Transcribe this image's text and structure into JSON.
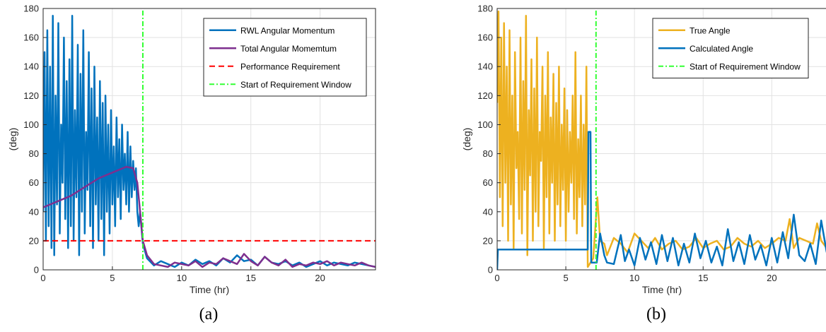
{
  "chart_data": [
    {
      "type": "line",
      "caption": "(a)",
      "xlabel": "Time (hr)",
      "ylabel": "(deg)",
      "xlim": [
        0,
        24
      ],
      "ylim": [
        0,
        180
      ],
      "xticks": [
        0,
        5,
        10,
        15,
        20
      ],
      "yticks": [
        0,
        20,
        40,
        60,
        80,
        100,
        120,
        140,
        160,
        180
      ],
      "grid": true,
      "legend_position": "top-right",
      "series": [
        {
          "name": "RWL Angular Momentum",
          "color": "#0072BD",
          "style": "solid",
          "x": [
            0,
            0.1,
            0.2,
            0.3,
            0.4,
            0.5,
            0.6,
            0.7,
            0.8,
            0.9,
            1.0,
            1.1,
            1.2,
            1.3,
            1.4,
            1.5,
            1.6,
            1.7,
            1.8,
            1.9,
            2.0,
            2.1,
            2.2,
            2.3,
            2.4,
            2.5,
            2.6,
            2.7,
            2.8,
            2.9,
            3.0,
            3.1,
            3.2,
            3.3,
            3.4,
            3.5,
            3.6,
            3.7,
            3.8,
            3.9,
            4.0,
            4.1,
            4.2,
            4.3,
            4.4,
            4.5,
            4.6,
            4.7,
            4.8,
            4.9,
            5.0,
            5.1,
            5.2,
            5.3,
            5.4,
            5.5,
            5.6,
            5.7,
            5.8,
            5.9,
            6.0,
            6.1,
            6.2,
            6.3,
            6.4,
            6.5,
            6.6,
            6.7,
            6.8,
            6.9,
            7.0,
            7.2,
            7.5,
            8.0,
            8.5,
            9.0,
            9.5,
            10.0,
            10.5,
            11.0,
            11.5,
            12.0,
            12.5,
            13.0,
            13.5,
            14.0,
            14.5,
            15.0,
            15.5,
            16.0,
            16.5,
            17.0,
            17.5,
            18.0,
            18.5,
            19.0,
            19.5,
            20.0,
            20.5,
            21.0,
            21.5,
            22.0,
            22.5,
            23.0,
            23.5,
            24.0
          ],
          "values": [
            40,
            150,
            20,
            165,
            30,
            140,
            15,
            175,
            10,
            120,
            45,
            170,
            25,
            100,
            60,
            160,
            35,
            130,
            15,
            145,
            30,
            175,
            20,
            110,
            50,
            155,
            10,
            135,
            40,
            165,
            25,
            95,
            55,
            150,
            30,
            125,
            15,
            140,
            45,
            105,
            20,
            130,
            35,
            115,
            10,
            120,
            40,
            100,
            25,
            110,
            45,
            85,
            30,
            105,
            50,
            90,
            35,
            100,
            55,
            80,
            45,
            95,
            40,
            85,
            50,
            75,
            55,
            70,
            40,
            30,
            40,
            18,
            8,
            3,
            6,
            4,
            2,
            5,
            3,
            7,
            4,
            6,
            3,
            8,
            5,
            10,
            6,
            7,
            3,
            9,
            5,
            4,
            6,
            3,
            5,
            2,
            4,
            6,
            3,
            5,
            4,
            3,
            5,
            4,
            3,
            2
          ]
        },
        {
          "name": "Total Angular Momemtum",
          "color": "#7E2F8E",
          "style": "solid",
          "x": [
            0,
            0.5,
            1.0,
            1.5,
            2.0,
            2.5,
            3.0,
            3.5,
            4.0,
            4.5,
            5.0,
            5.5,
            6.0,
            6.5,
            6.8,
            7.0,
            7.2,
            7.5,
            8.0,
            8.5,
            9.0,
            9.5,
            10.0,
            10.5,
            11.0,
            11.5,
            12.0,
            12.5,
            13.0,
            13.5,
            14.0,
            14.5,
            15.0,
            15.5,
            16.0,
            16.5,
            17.0,
            17.5,
            18.0,
            18.5,
            19.0,
            19.5,
            20.0,
            20.5,
            21.0,
            21.5,
            22.0,
            22.5,
            23.0,
            23.5,
            24.0
          ],
          "values": [
            43,
            45,
            47,
            49,
            51,
            54,
            57,
            60,
            63,
            65,
            67,
            69,
            71,
            70,
            60,
            40,
            20,
            10,
            4,
            3,
            2,
            5,
            4,
            3,
            6,
            2,
            5,
            4,
            8,
            6,
            4,
            11,
            6,
            3,
            9,
            5,
            3,
            7,
            2,
            4,
            3,
            5,
            4,
            6,
            3,
            5,
            4,
            3,
            5,
            3,
            2
          ]
        },
        {
          "name": "Performance Requirement",
          "color": "#FF0000",
          "style": "dashed",
          "x": [
            0,
            24
          ],
          "values": [
            20,
            20
          ]
        },
        {
          "name": "Start of Requirement Window",
          "color": "#33FF33",
          "style": "dashdot",
          "x": [
            7.2,
            7.2
          ],
          "values": [
            0,
            180
          ]
        }
      ]
    },
    {
      "type": "line",
      "caption": "(b)",
      "xlabel": "Time (hr)",
      "ylabel": "(deg)",
      "xlim": [
        0,
        24
      ],
      "ylim": [
        0,
        180
      ],
      "xticks": [
        0,
        5,
        10,
        15,
        20
      ],
      "yticks": [
        0,
        20,
        40,
        60,
        80,
        100,
        120,
        140,
        160,
        180
      ],
      "grid": true,
      "legend_position": "top-right",
      "series": [
        {
          "name": "True Angle",
          "color": "#EDB120",
          "style": "solid",
          "x": [
            0,
            0.1,
            0.2,
            0.3,
            0.4,
            0.5,
            0.6,
            0.7,
            0.8,
            0.9,
            1.0,
            1.1,
            1.2,
            1.3,
            1.4,
            1.5,
            1.6,
            1.7,
            1.8,
            1.9,
            2.0,
            2.1,
            2.2,
            2.3,
            2.4,
            2.5,
            2.6,
            2.7,
            2.8,
            2.9,
            3.0,
            3.1,
            3.2,
            3.3,
            3.4,
            3.5,
            3.6,
            3.7,
            3.8,
            3.9,
            4.0,
            4.1,
            4.2,
            4.3,
            4.4,
            4.5,
            4.6,
            4.7,
            4.8,
            4.9,
            5.0,
            5.1,
            5.2,
            5.3,
            5.4,
            5.5,
            5.6,
            5.7,
            5.8,
            5.9,
            6.0,
            6.1,
            6.2,
            6.3,
            6.4,
            6.5,
            6.6,
            7.0,
            7.3,
            7.5,
            7.8,
            8.0,
            8.5,
            9.0,
            9.5,
            10.0,
            10.5,
            11.0,
            11.5,
            12.0,
            12.5,
            13.0,
            13.5,
            14.0,
            14.5,
            15.0,
            15.5,
            16.0,
            16.5,
            17.0,
            17.5,
            18.0,
            18.5,
            19.0,
            19.5,
            20.0,
            20.5,
            21.0,
            21.3,
            21.6,
            22.0,
            22.5,
            23.0,
            23.3,
            23.6,
            24.0
          ],
          "values": [
            115,
            178,
            50,
            160,
            30,
            170,
            60,
            140,
            20,
            165,
            45,
            120,
            15,
            150,
            70,
            95,
            35,
            160,
            25,
            130,
            55,
            175,
            10,
            110,
            65,
            145,
            20,
            125,
            40,
            160,
            30,
            95,
            75,
            140,
            15,
            120,
            50,
            150,
            25,
            105,
            60,
            135,
            20,
            115,
            45,
            140,
            30,
            100,
            55,
            125,
            20,
            110,
            40,
            95,
            60,
            120,
            35,
            150,
            25,
            90,
            50,
            120,
            30,
            100,
            45,
            140,
            2,
            8,
            50,
            20,
            18,
            10,
            22,
            18,
            12,
            25,
            20,
            15,
            22,
            14,
            18,
            20,
            14,
            16,
            22,
            15,
            18,
            20,
            14,
            16,
            22,
            18,
            16,
            20,
            15,
            18,
            22,
            20,
            35,
            15,
            22,
            20,
            18,
            32,
            20,
            15
          ]
        },
        {
          "name": "Calculated Angle",
          "color": "#0072BD",
          "style": "solid",
          "x": [
            0,
            0.05,
            6.6,
            6.65,
            6.8,
            6.85,
            7.2,
            7.25,
            7.5,
            7.8,
            8.0,
            8.5,
            9.0,
            9.3,
            9.6,
            10.0,
            10.4,
            10.8,
            11.2,
            11.6,
            12.0,
            12.4,
            12.8,
            13.2,
            13.6,
            14.0,
            14.4,
            14.8,
            15.2,
            15.6,
            16.0,
            16.4,
            16.8,
            17.2,
            17.6,
            18.0,
            18.4,
            18.8,
            19.2,
            19.6,
            20.0,
            20.4,
            20.8,
            21.2,
            21.6,
            22.0,
            22.4,
            22.8,
            23.2,
            23.6,
            24.0
          ],
          "values": [
            0,
            14,
            14,
            95,
            95,
            5,
            5,
            5,
            25,
            10,
            5,
            4,
            24,
            6,
            14,
            3,
            22,
            7,
            19,
            4,
            24,
            6,
            22,
            3,
            18,
            5,
            25,
            8,
            20,
            5,
            16,
            3,
            28,
            6,
            19,
            4,
            24,
            7,
            17,
            3,
            22,
            5,
            26,
            8,
            38,
            10,
            6,
            18,
            4,
            34,
            12
          ]
        },
        {
          "name": "Start of Requirement Window",
          "color": "#33FF33",
          "style": "dashdot",
          "x": [
            7.2,
            7.2
          ],
          "values": [
            0,
            180
          ]
        }
      ]
    }
  ]
}
